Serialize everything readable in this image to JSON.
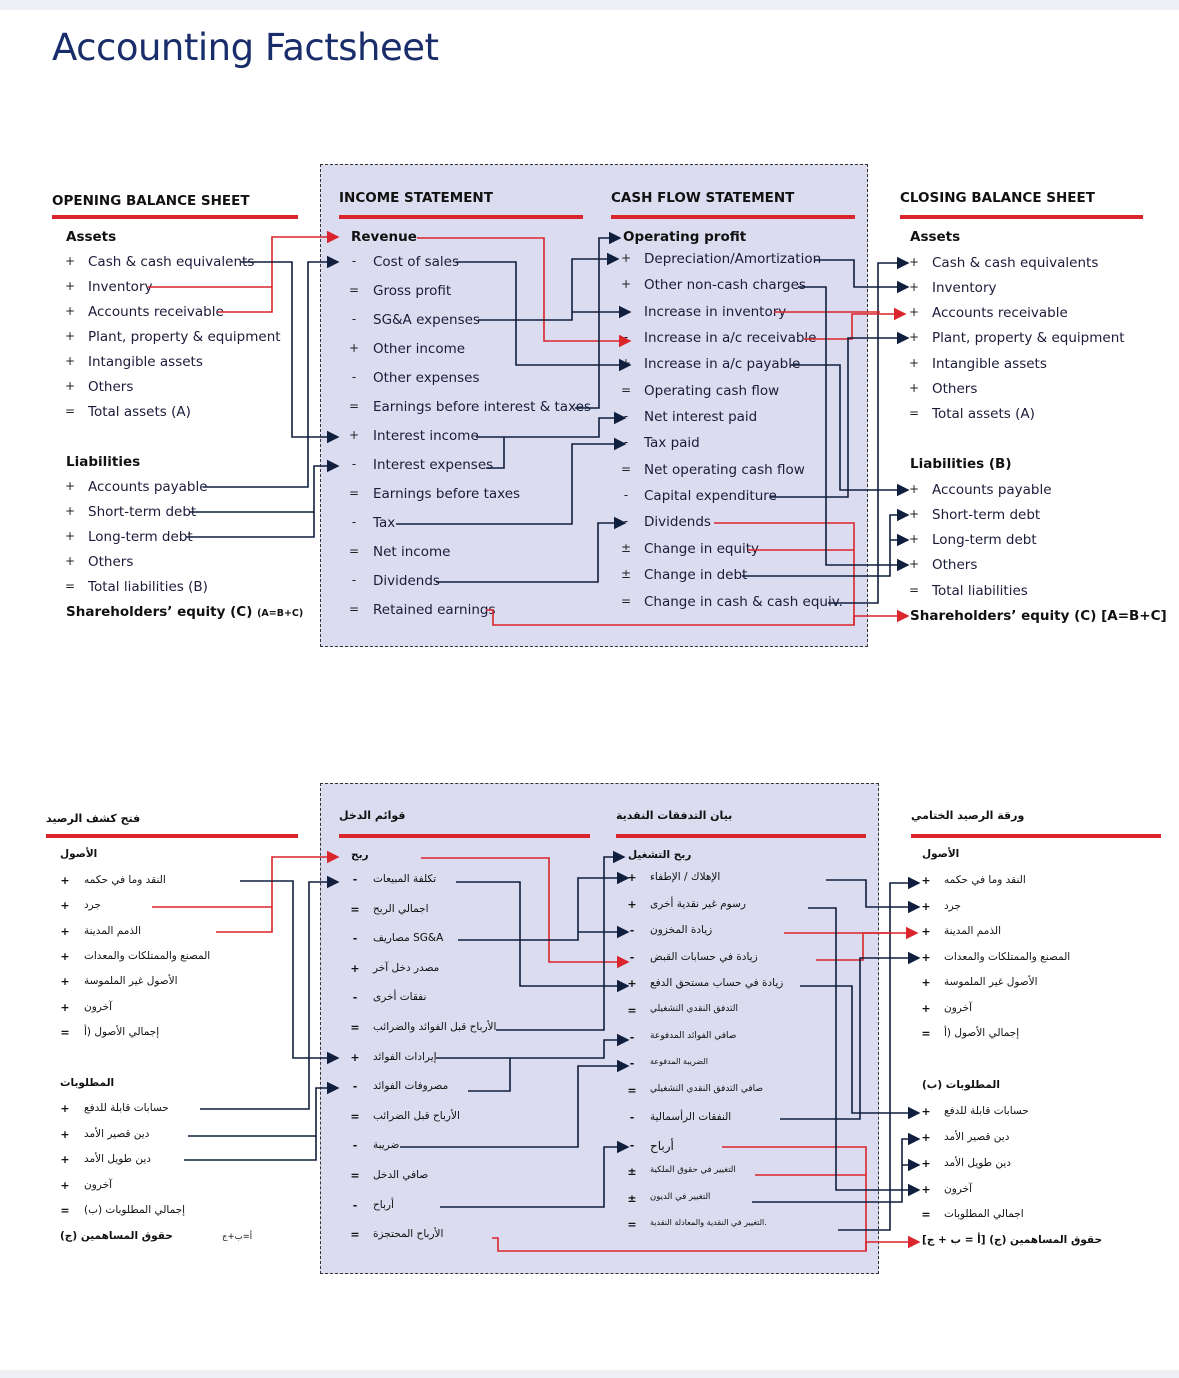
{
  "title": "Accounting Factsheet",
  "en": {
    "opening": {
      "header": "OPENING BALANCE SHEET",
      "assets_heading": "Assets",
      "assets": [
        {
          "op": "+",
          "label": "Cash & cash equivalents"
        },
        {
          "op": "+",
          "label": "Inventory"
        },
        {
          "op": "+",
          "label": "Accounts receivable"
        },
        {
          "op": "+",
          "label": "Plant, property & equipment"
        },
        {
          "op": "+",
          "label": "Intangible assets"
        },
        {
          "op": "+",
          "label": "Others"
        },
        {
          "op": "=",
          "label": "Total assets (A)"
        }
      ],
      "liab_heading": "Liabilities",
      "liabilities": [
        {
          "op": "+",
          "label": "Accounts payable"
        },
        {
          "op": "+",
          "label": "Short-term debt"
        },
        {
          "op": "+",
          "label": "Long-term debt"
        },
        {
          "op": "+",
          "label": "Others"
        },
        {
          "op": "=",
          "label": "Total liabilities (B)"
        }
      ],
      "equity": "Shareholders’ equity (C)",
      "equity_note": "(A=B+C)"
    },
    "income": {
      "header": "INCOME STATEMENT",
      "first": "Revenue",
      "items": [
        {
          "op": "-",
          "label": "Cost of sales"
        },
        {
          "op": "=",
          "label": "Gross profit"
        },
        {
          "op": "-",
          "label": "SG&A expenses"
        },
        {
          "op": "+",
          "label": "Other income"
        },
        {
          "op": "-",
          "label": "Other expenses"
        },
        {
          "op": "=",
          "label": "Earnings before interest & taxes"
        },
        {
          "op": "+",
          "label": "Interest income"
        },
        {
          "op": "-",
          "label": "Interest expenses"
        },
        {
          "op": "=",
          "label": "Earnings before taxes"
        },
        {
          "op": "-",
          "label": "Tax"
        },
        {
          "op": "=",
          "label": "Net income"
        },
        {
          "op": "-",
          "label": "Dividends"
        },
        {
          "op": "=",
          "label": "Retained earnings"
        }
      ]
    },
    "cashflow": {
      "header": "CASH FLOW STATEMENT",
      "first": "Operating profit",
      "items": [
        {
          "op": "+",
          "label": "Depreciation/Amortization"
        },
        {
          "op": "+",
          "label": "Other non-cash charges"
        },
        {
          "op": "-",
          "label": "Increase in inventory"
        },
        {
          "op": "-",
          "label": "Increase in a/c receivable"
        },
        {
          "op": "+",
          "label": "Increase in a/c payable"
        },
        {
          "op": "=",
          "label": "Operating cash flow"
        },
        {
          "op": "-",
          "label": "Net interest paid"
        },
        {
          "op": "-",
          "label": "Tax paid"
        },
        {
          "op": "=",
          "label": "Net operating cash flow"
        },
        {
          "op": "-",
          "label": "Capital expenditure"
        },
        {
          "op": "-",
          "label": "Dividends"
        },
        {
          "op": "±",
          "label": "Change in equity"
        },
        {
          "op": "±",
          "label": "Change in debt"
        },
        {
          "op": "=",
          "label": "Change in cash & cash equiv."
        }
      ]
    },
    "closing": {
      "header": "CLOSING BALANCE SHEET",
      "assets_heading": "Assets",
      "assets": [
        {
          "op": "+",
          "label": "Cash & cash equivalents"
        },
        {
          "op": "+",
          "label": "Inventory"
        },
        {
          "op": "+",
          "label": "Accounts receivable"
        },
        {
          "op": "+",
          "label": "Plant, property & equipment"
        },
        {
          "op": "+",
          "label": "Intangible assets"
        },
        {
          "op": "+",
          "label": "Others"
        },
        {
          "op": "=",
          "label": "Total assets (A)"
        }
      ],
      "liab_heading": "Liabilities (B)",
      "liabilities": [
        {
          "op": "+",
          "label": "Accounts payable"
        },
        {
          "op": "+",
          "label": "Short-term debt"
        },
        {
          "op": "+",
          "label": "Long-term debt"
        },
        {
          "op": "+",
          "label": "Others"
        },
        {
          "op": "=",
          "label": "Total liabilities"
        }
      ],
      "equity": "Shareholders’ equity (C) [A=B+C]"
    }
  },
  "ar": {
    "opening": {
      "header": "فتح كشف الرصيد",
      "assets_heading": "الأصول",
      "assets": [
        {
          "op": "+",
          "label": "النقد وما في حكمه"
        },
        {
          "op": "+",
          "label": "جرد"
        },
        {
          "op": "+",
          "label": "الذمم المدينة"
        },
        {
          "op": "+",
          "label": "المصنع والممتلكات والمعدات"
        },
        {
          "op": "+",
          "label": "الأصول غير الملموسة"
        },
        {
          "op": "+",
          "label": "آخرون"
        },
        {
          "op": "=",
          "label": "إجمالي الأصول (أ"
        }
      ],
      "liab_heading": "المطلوبات",
      "liabilities": [
        {
          "op": "+",
          "label": "حسابات قابلة للدفع"
        },
        {
          "op": "+",
          "label": "دين قصير الأمد"
        },
        {
          "op": "+",
          "label": "دين طويل الأمد"
        },
        {
          "op": "+",
          "label": "آخرون"
        },
        {
          "op": "=",
          "label": "(إجمالي المطلوبات (ب"
        }
      ],
      "equity": "حقوق المساهمين (ج)",
      "equity_note": "أ=ب+ج"
    },
    "income": {
      "header": "قوائم الدخل",
      "first": "ربح",
      "items": [
        {
          "op": "-",
          "label": "تكلفة المبيعات"
        },
        {
          "op": "=",
          "label": "اجمالي الربح"
        },
        {
          "op": "-",
          "label": "مصاريف SG&A"
        },
        {
          "op": "+",
          "label": "مصدر دخل آخر"
        },
        {
          "op": "-",
          "label": "نفقات أخرى"
        },
        {
          "op": "=",
          "label": "الأرباح قبل الفوائد والضرائب"
        },
        {
          "op": "+",
          "label": "إيرادات الفوائد"
        },
        {
          "op": "-",
          "label": "مصروفات الفوائد"
        },
        {
          "op": "=",
          "label": "الأرباح قبل الضرائب"
        },
        {
          "op": "-",
          "label": "ضريبة"
        },
        {
          "op": "=",
          "label": "صافي الدخل"
        },
        {
          "op": "-",
          "label": "أرباح"
        },
        {
          "op": "=",
          "label": "الأرباح المحتجزة"
        }
      ]
    },
    "cashflow": {
      "header": "بيان التدفقات النقدية",
      "first": "ربح التشغيل",
      "items": [
        {
          "op": "+",
          "label": "الإهلاك / الإطفاء"
        },
        {
          "op": "+",
          "label": "رسوم غير نقدية أخرى"
        },
        {
          "op": "-",
          "label": "زيادة المخزون"
        },
        {
          "op": "-",
          "label": "زيادة في حسابات القبض"
        },
        {
          "op": "+",
          "label": "زيادة في حساب مستحق الدفع"
        },
        {
          "op": "=",
          "label": "التدفق النقدي التشغيلي"
        },
        {
          "op": "-",
          "label": "صافي الفوائد المدفوعة"
        },
        {
          "op": "-",
          "label": "الضريبة المدفوعة"
        },
        {
          "op": "=",
          "label": "صافي التدفق النقدي التشغيلي"
        },
        {
          "op": "-",
          "label": "النفقات الرأسمالية"
        },
        {
          "op": "-",
          "label": "أرباح"
        },
        {
          "op": "±",
          "label": "التغيير في حقوق الملكية"
        },
        {
          "op": "±",
          "label": "التغيير في الديون"
        },
        {
          "op": "=",
          "label": "التغيير في النقدية والمعادلة النقدية."
        }
      ]
    },
    "closing": {
      "header": "ورقة الرصيد الختامي",
      "assets_heading": "الأصول",
      "assets": [
        {
          "op": "+",
          "label": "النقد وما في حكمه"
        },
        {
          "op": "+",
          "label": "جرد"
        },
        {
          "op": "+",
          "label": "الذمم المدينة"
        },
        {
          "op": "+",
          "label": "المصنع والممتلكات والمعدات"
        },
        {
          "op": "+",
          "label": "الأصول غير الملموسة"
        },
        {
          "op": "+",
          "label": "آخرون"
        },
        {
          "op": "=",
          "label": "إجمالي الأصول (أ"
        }
      ],
      "liab_heading": "المطلوبات (ب)",
      "liabilities": [
        {
          "op": "+",
          "label": "حسابات قابلة للدفع"
        },
        {
          "op": "+",
          "label": "دين قصير الأمد"
        },
        {
          "op": "+",
          "label": "دين طويل الأمد"
        },
        {
          "op": "+",
          "label": "آخرون"
        },
        {
          "op": "=",
          "label": "اجمالي المطلوبات"
        }
      ],
      "equity": "[حقوق المساهمين (ج) [أ = ب + ج"
    }
  },
  "colors": {
    "accent_red": "#d9252b",
    "navy": "#0f1f3d",
    "panel": "#dcdcf0",
    "title": "#1a2d6b"
  }
}
